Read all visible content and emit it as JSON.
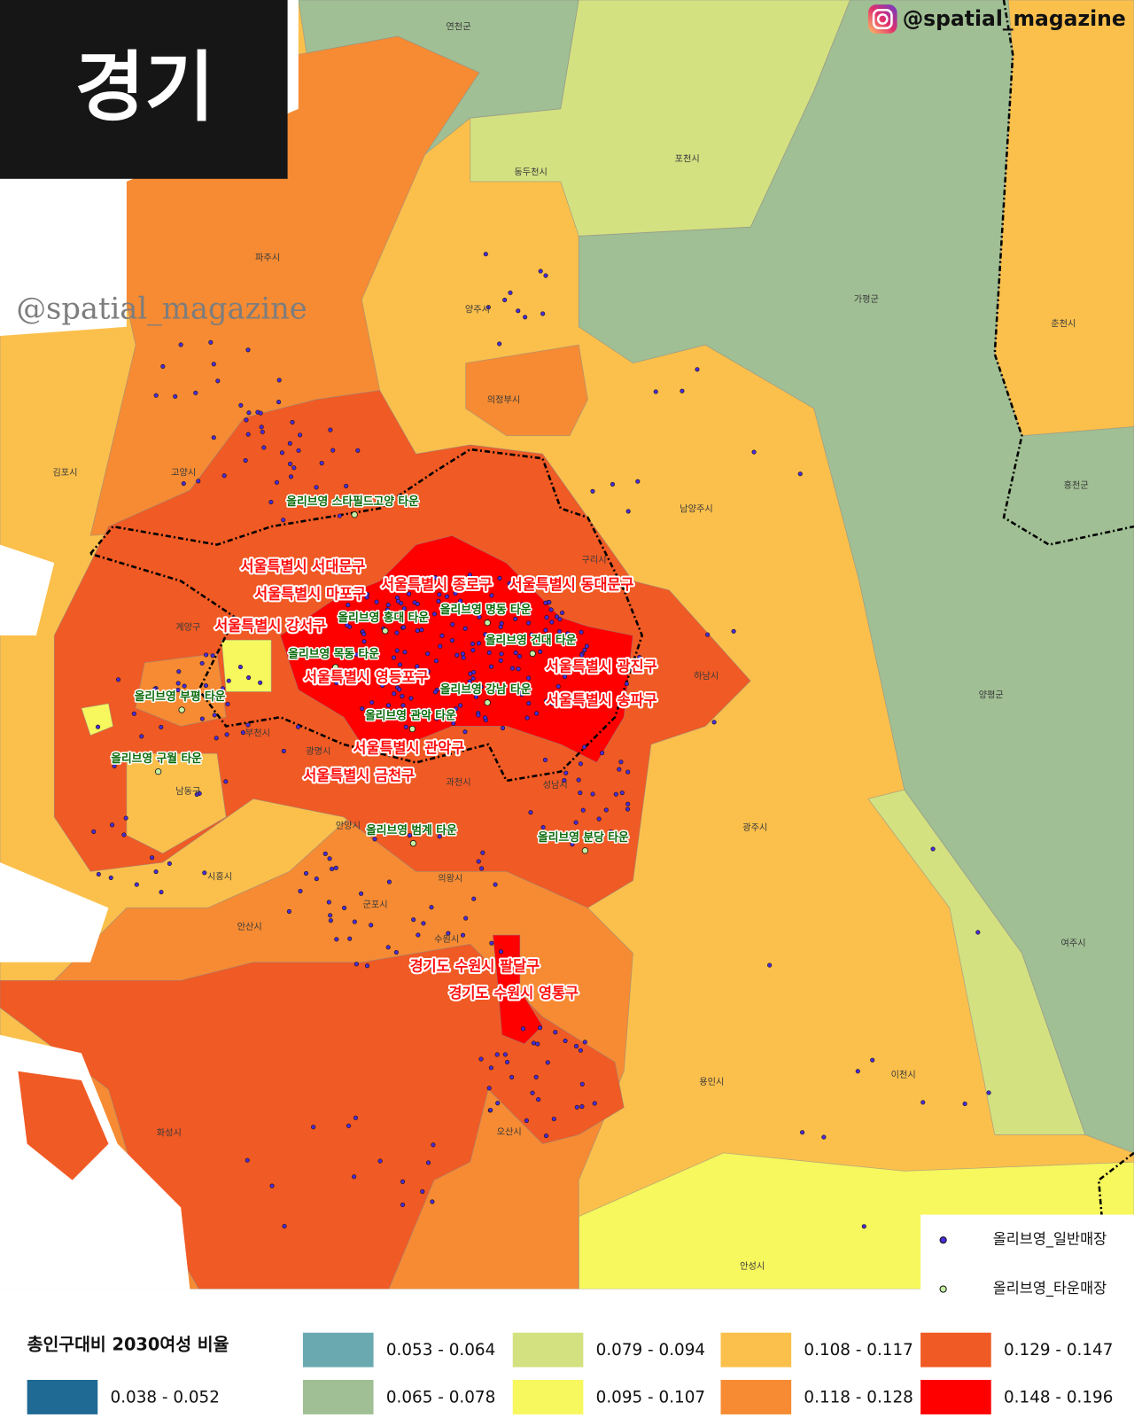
{
  "header": {
    "title": "경기",
    "handle": "@spatial_magazine"
  },
  "watermark": "@spatial_magazine",
  "region_labels": [
    "연천군",
    "동두천시",
    "포천시",
    "파주시",
    "양주시",
    "가평군",
    "춘천시",
    "의정부시",
    "김포시",
    "고양시",
    "남양주시",
    "홍천군",
    "구리시",
    "하남시",
    "양평군",
    "광명시",
    "부천시",
    "시흥시",
    "안산시",
    "군포시",
    "의왕시",
    "과천시",
    "성남시",
    "광주시",
    "수원시",
    "용인시",
    "화성시",
    "오산시",
    "안성시",
    "이천시",
    "여주시",
    "남동구",
    "안양시",
    "계양구"
  ],
  "highlight_labels": [
    "서울특별시 서대문구",
    "서울특별시 종로구",
    "서울특별시 동대문구",
    "서울특별시 마포구",
    "서울특별시 강서구",
    "서울특별시 광진구",
    "서울특별시 송파구",
    "서울특별시 영등포구",
    "서울특별시 관악구",
    "서울특별시 금천구",
    "경기도 수원시 팔달구",
    "경기도 수원시 영통구"
  ],
  "town_labels": [
    "올리브영 스타필드고양 타운",
    "올리브영 명동 타운",
    "올리브영 홍대 타운",
    "올리브영 건대 타운",
    "올리브영 목동 타운",
    "올리브영 강남 타운",
    "올리브영 부평 타운",
    "올리브영 관악 타운",
    "올리브영 구월 타운",
    "올리브영 범계 타운",
    "올리브영 분당 타운"
  ],
  "legend": {
    "title": "총인구대비 2030여성 비율",
    "classes": [
      {
        "label": "0.038 - 0.052",
        "color": "#1f6a95"
      },
      {
        "label": "0.053 - 0.064",
        "color": "#6aa9b0"
      },
      {
        "label": "0.065 - 0.078",
        "color": "#a0bf94"
      },
      {
        "label": "0.079 - 0.094",
        "color": "#d4e181"
      },
      {
        "label": "0.095 - 0.107",
        "color": "#f7f75e"
      },
      {
        "label": "0.108 - 0.117",
        "color": "#fbc04c"
      },
      {
        "label": "0.118 - 0.128",
        "color": "#f68b33"
      },
      {
        "label": "0.129 - 0.147",
        "color": "#f05a24"
      },
      {
        "label": "0.148 - 0.196",
        "color": "#ff0000"
      }
    ],
    "points": [
      {
        "label": "올리브영_일반매장",
        "color": "#4a2bd8"
      },
      {
        "label": "올리브영_타운매장",
        "color": "#c6f0a4"
      }
    ]
  }
}
